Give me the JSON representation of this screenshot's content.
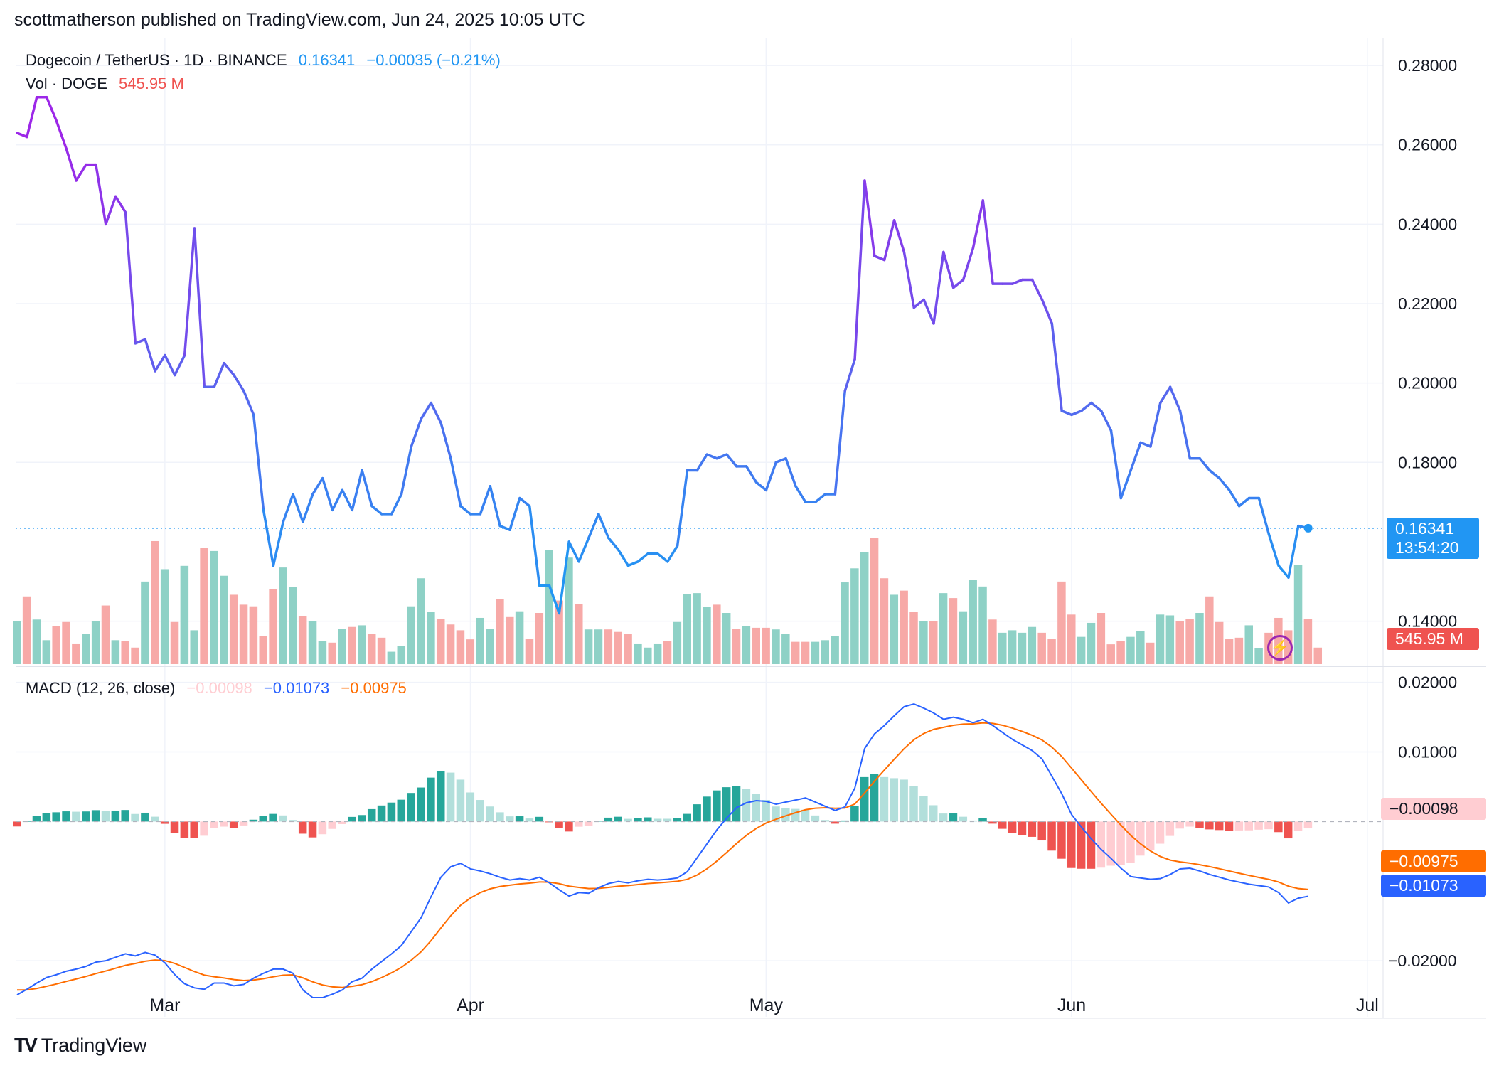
{
  "header": {
    "text": "scottmatherson published on TradingView.com, Jun 24, 2025 10:05 UTC"
  },
  "legend": {
    "symbol": "Dogecoin / TetherUS · 1D · BINANCE",
    "last": "0.16341",
    "change": "−0.00035 (−0.21%)",
    "vol_label": "Vol · DOGE",
    "vol_value": "545.95 M",
    "macd_label": "MACD (12, 26, close)",
    "macd_hist": "−0.00098",
    "macd_line": "−0.01073",
    "macd_signal": "−0.00975"
  },
  "badges": {
    "price": "0.16341",
    "countdown": "13:54:20",
    "volume": "545.95 M",
    "hist": "−0.00098",
    "signal": "−0.00975",
    "macd": "−0.01073"
  },
  "footer": {
    "brand": "TradingView"
  },
  "colors": {
    "up": "#26a69a",
    "down": "#ef5350",
    "up_light": "#b2dfdb",
    "down_light": "#ffcdd2",
    "macd": "#2962ff",
    "signal": "#ff6d00",
    "price_blue": "#2196f3",
    "price_purple": "#9c27e8"
  },
  "chart_data": [
    {
      "type": "line",
      "title": "Dogecoin / TetherUS · 1D · BINANCE",
      "x_start": "2025-02-14",
      "x_ticks": [
        "Mar",
        "Apr",
        "May",
        "Jun",
        "Jul"
      ],
      "y_ticks": [
        "0.28000",
        "0.26000",
        "0.24000",
        "0.22000",
        "0.20000",
        "0.18000",
        "0.14000"
      ],
      "ylim": [
        0.129,
        0.287
      ],
      "last_price": 0.16341,
      "close": [
        0.263,
        0.262,
        0.272,
        0.272,
        0.266,
        0.259,
        0.251,
        0.255,
        0.255,
        0.24,
        0.247,
        0.243,
        0.21,
        0.211,
        0.203,
        0.207,
        0.202,
        0.207,
        0.239,
        0.199,
        0.199,
        0.205,
        0.202,
        0.198,
        0.192,
        0.168,
        0.154,
        0.165,
        0.172,
        0.165,
        0.172,
        0.176,
        0.168,
        0.173,
        0.168,
        0.178,
        0.169,
        0.167,
        0.167,
        0.172,
        0.184,
        0.191,
        0.195,
        0.19,
        0.181,
        0.169,
        0.167,
        0.167,
        0.174,
        0.164,
        0.163,
        0.171,
        0.169,
        0.149,
        0.149,
        0.142,
        0.16,
        0.155,
        0.161,
        0.167,
        0.161,
        0.158,
        0.154,
        0.155,
        0.157,
        0.157,
        0.155,
        0.159,
        0.178,
        0.178,
        0.182,
        0.181,
        0.182,
        0.179,
        0.179,
        0.175,
        0.173,
        0.18,
        0.181,
        0.174,
        0.17,
        0.17,
        0.172,
        0.172,
        0.198,
        0.206,
        0.251,
        0.232,
        0.231,
        0.241,
        0.233,
        0.219,
        0.221,
        0.215,
        0.233,
        0.224,
        0.226,
        0.234,
        0.246,
        0.225,
        0.225,
        0.225,
        0.226,
        0.226,
        0.221,
        0.215,
        0.193,
        0.192,
        0.193,
        0.195,
        0.193,
        0.188,
        0.171,
        0.178,
        0.185,
        0.184,
        0.195,
        0.199,
        0.193,
        0.181,
        0.181,
        0.178,
        0.176,
        0.173,
        0.169,
        0.171,
        0.171,
        0.162,
        0.154,
        0.151,
        0.164,
        0.16341
      ]
    },
    {
      "type": "bar",
      "title": "Vol · DOGE",
      "last_value": "545.95 M",
      "volume": [
        0.52,
        0.82,
        0.54,
        0.29,
        0.46,
        0.51,
        0.25,
        0.37,
        0.52,
        0.71,
        0.29,
        0.28,
        0.2,
        1.0,
        1.49,
        1.15,
        0.51,
        1.19,
        0.41,
        1.41,
        1.37,
        1.07,
        0.84,
        0.72,
        0.7,
        0.34,
        0.91,
        1.17,
        0.93,
        0.58,
        0.52,
        0.28,
        0.26,
        0.43,
        0.45,
        0.47,
        0.37,
        0.32,
        0.15,
        0.22,
        0.7,
        1.04,
        0.63,
        0.55,
        0.48,
        0.41,
        0.3,
        0.56,
        0.43,
        0.79,
        0.57,
        0.64,
        0.31,
        0.62,
        1.38,
        0.77,
        1.29,
        0.73,
        0.42,
        0.42,
        0.42,
        0.39,
        0.37,
        0.25,
        0.2,
        0.25,
        0.28,
        0.51,
        0.85,
        0.86,
        0.69,
        0.72,
        0.62,
        0.43,
        0.46,
        0.44,
        0.44,
        0.42,
        0.37,
        0.27,
        0.27,
        0.27,
        0.29,
        0.34,
        0.99,
        1.16,
        1.36,
        1.53,
        1.04,
        0.84,
        0.89,
        0.63,
        0.52,
        0.52,
        0.86,
        0.8,
        0.64,
        1.02,
        0.94,
        0.54,
        0.38,
        0.41,
        0.38,
        0.45,
        0.38,
        0.31,
        1.0,
        0.6,
        0.33,
        0.5,
        0.62,
        0.24,
        0.28,
        0.33,
        0.4,
        0.26,
        0.6,
        0.59,
        0.52,
        0.55,
        0.62,
        0.82,
        0.51,
        0.31,
        0.32,
        0.47,
        0.19,
        0.38,
        0.56,
        0.41,
        1.2,
        0.55,
        0.2
      ]
    },
    {
      "type": "line",
      "title": "MACD (12, 26, close)",
      "y_ticks": [
        "0.02000",
        "0.01000",
        "−0.02000"
      ],
      "ylim": [
        -0.0255,
        0.0215
      ],
      "macd_last": -0.01073,
      "signal_last": -0.00975,
      "hist_last": -0.00098,
      "macd": [
        -0.0249,
        -0.0241,
        -0.0232,
        -0.0224,
        -0.022,
        -0.0215,
        -0.0212,
        -0.0208,
        -0.0202,
        -0.02,
        -0.0195,
        -0.019,
        -0.0193,
        -0.0188,
        -0.0192,
        -0.0203,
        -0.022,
        -0.0233,
        -0.0239,
        -0.0241,
        -0.0232,
        -0.0232,
        -0.0236,
        -0.0234,
        -0.0225,
        -0.0218,
        -0.0212,
        -0.0212,
        -0.0218,
        -0.0242,
        -0.0253,
        -0.0253,
        -0.0248,
        -0.0242,
        -0.023,
        -0.0225,
        -0.0212,
        -0.0201,
        -0.019,
        -0.0178,
        -0.0158,
        -0.0138,
        -0.0108,
        -0.008,
        -0.0065,
        -0.006,
        -0.0068,
        -0.0071,
        -0.0075,
        -0.008,
        -0.0084,
        -0.0082,
        -0.0084,
        -0.008,
        -0.0088,
        -0.0098,
        -0.0107,
        -0.0102,
        -0.0103,
        -0.0095,
        -0.0089,
        -0.0086,
        -0.0088,
        -0.0085,
        -0.0083,
        -0.0084,
        -0.0083,
        -0.0081,
        -0.0072,
        -0.0052,
        -0.0032,
        -0.0012,
        0.0005,
        0.002,
        0.0027,
        0.003,
        0.0029,
        0.0025,
        0.0028,
        0.0031,
        0.0034,
        0.0028,
        0.0022,
        0.0016,
        0.0021,
        0.0048,
        0.0105,
        0.0126,
        0.0138,
        0.0152,
        0.0165,
        0.0169,
        0.0163,
        0.0156,
        0.0147,
        0.015,
        0.0147,
        0.0142,
        0.0147,
        0.0138,
        0.0128,
        0.0118,
        0.011,
        0.0102,
        0.009,
        0.0065,
        0.004,
        0.001,
        -0.0008,
        -0.0025,
        -0.004,
        -0.0053,
        -0.0067,
        -0.0079,
        -0.0081,
        -0.0083,
        -0.0082,
        -0.0076,
        -0.0068,
        -0.0067,
        -0.0071,
        -0.0076,
        -0.008,
        -0.0084,
        -0.0087,
        -0.009,
        -0.0092,
        -0.0094,
        -0.0102,
        -0.0117,
        -0.011,
        -0.01073
      ]
    }
  ]
}
